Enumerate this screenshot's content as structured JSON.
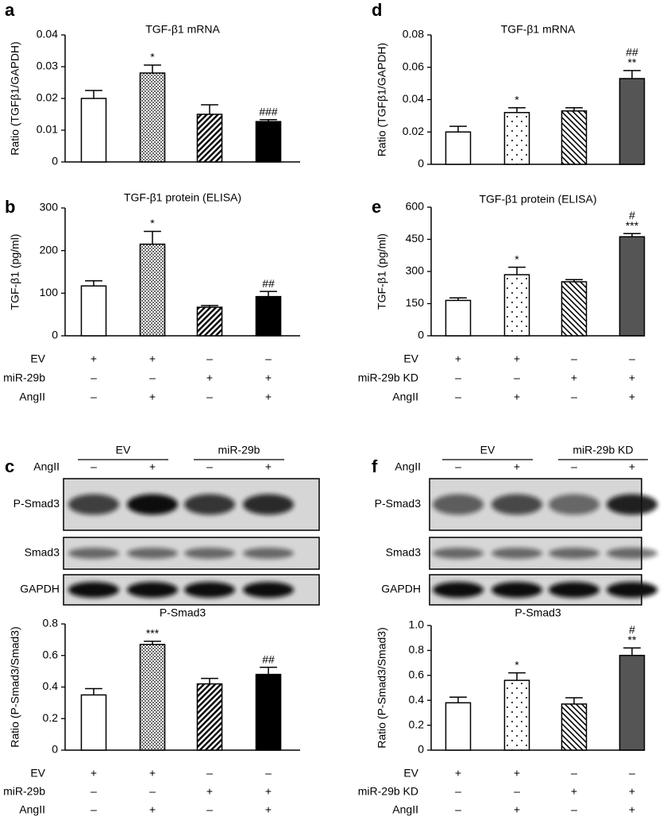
{
  "chart_data": [
    {
      "type": "bar",
      "panel": "a",
      "title": "TGF-β1 mRNA",
      "ylabel": "Ratio (TGFβ1/GAPDH)",
      "ylim": [
        0,
        0.04
      ],
      "yticks": [
        0,
        0.01,
        0.02,
        0.03,
        0.04
      ],
      "values": [
        0.02,
        0.028,
        0.015,
        0.0127
      ],
      "errors": [
        0.0025,
        0.0025,
        0.003,
        0.0006
      ],
      "annotations": [
        null,
        "*",
        null,
        "###"
      ],
      "fills": [
        "white",
        "fine-dots",
        "back-hatch",
        "black"
      ]
    },
    {
      "type": "bar",
      "panel": "b",
      "title": "TGF-β1 protein (ELISA)",
      "ylabel": "TGF-β1 (pg/ml)",
      "ylim": [
        0,
        300
      ],
      "yticks": [
        0,
        100,
        200,
        300
      ],
      "values": [
        117,
        215,
        67,
        92
      ],
      "errors": [
        12,
        30,
        4,
        12
      ],
      "annotations": [
        null,
        "*",
        null,
        "##"
      ],
      "fills": [
        "white",
        "fine-dots",
        "back-hatch",
        "black"
      ],
      "conditions": [
        {
          "label": "EV",
          "marks": [
            "+",
            "+",
            "–",
            "–"
          ]
        },
        {
          "label": "miR-29b",
          "marks": [
            "–",
            "–",
            "+",
            "+"
          ]
        },
        {
          "label": "AngII",
          "marks": [
            "–",
            "+",
            "–",
            "+"
          ]
        }
      ]
    },
    {
      "type": "bar",
      "panel": "c",
      "title": "P-Smad3",
      "ylabel": "Ratio (P-Smad3/Smad3)",
      "ylim": [
        0,
        0.8
      ],
      "yticks": [
        0,
        0.2,
        0.4,
        0.6,
        0.8
      ],
      "values": [
        0.35,
        0.67,
        0.42,
        0.48
      ],
      "errors": [
        0.04,
        0.02,
        0.035,
        0.045
      ],
      "annotations": [
        null,
        "***",
        null,
        "##"
      ],
      "fills": [
        "white",
        "fine-dots",
        "back-hatch",
        "black"
      ],
      "conditions": [
        {
          "label": "EV",
          "marks": [
            "+",
            "+",
            "–",
            "–"
          ]
        },
        {
          "label": "miR-29b",
          "marks": [
            "–",
            "–",
            "+",
            "+"
          ]
        },
        {
          "label": "AngII",
          "marks": [
            "–",
            "+",
            "–",
            "+"
          ]
        }
      ]
    },
    {
      "type": "bar",
      "panel": "d",
      "title": "TGF-β1 mRNA",
      "ylabel": "Ratio (TGFβ1/GAPDH)",
      "ylim": [
        0,
        0.08
      ],
      "yticks": [
        0,
        0.02,
        0.04,
        0.06,
        0.08
      ],
      "values": [
        0.02,
        0.032,
        0.033,
        0.053
      ],
      "errors": [
        0.0035,
        0.003,
        0.002,
        0.005
      ],
      "annotations": [
        null,
        "*",
        null,
        [
          "##",
          "**"
        ]
      ],
      "fills": [
        "white",
        "sparse-dots",
        "fwd-hatch",
        "dark"
      ]
    },
    {
      "type": "bar",
      "panel": "e",
      "title": "TGF-β1 protein (ELISA)",
      "ylabel": "TGF-β1 (pg/ml)",
      "ylim": [
        0,
        600
      ],
      "yticks": [
        0,
        150,
        300,
        450,
        600
      ],
      "values": [
        165,
        285,
        252,
        462
      ],
      "errors": [
        12,
        35,
        10,
        15
      ],
      "annotations": [
        null,
        "*",
        null,
        [
          "#",
          "***"
        ]
      ],
      "fills": [
        "white",
        "sparse-dots",
        "fwd-hatch",
        "dark"
      ],
      "conditions": [
        {
          "label": "EV",
          "marks": [
            "+",
            "+",
            "–",
            "–"
          ]
        },
        {
          "label": "miR-29b KD",
          "marks": [
            "–",
            "–",
            "+",
            "+"
          ]
        },
        {
          "label": "AngII",
          "marks": [
            "–",
            "+",
            "–",
            "+"
          ]
        }
      ]
    },
    {
      "type": "bar",
      "panel": "f",
      "title": "P-Smad3",
      "ylabel": "Ratio (P-Smad3/Smad3)",
      "ylim": [
        0,
        1
      ],
      "yticks": [
        0,
        0.2,
        0.4,
        0.6,
        0.8,
        {
          "value": 1,
          "label": "1.0"
        }
      ],
      "values": [
        0.38,
        0.56,
        0.37,
        0.76
      ],
      "errors": [
        0.045,
        0.06,
        0.05,
        0.06
      ],
      "annotations": [
        null,
        "*",
        null,
        [
          "#",
          "**"
        ]
      ],
      "fills": [
        "white",
        "sparse-dots",
        "fwd-hatch",
        "dark"
      ],
      "conditions": [
        {
          "label": "EV",
          "marks": [
            "+",
            "+",
            "–",
            "–"
          ]
        },
        {
          "label": "miR-29b KD",
          "marks": [
            "–",
            "–",
            "+",
            "+"
          ]
        },
        {
          "label": "AngII",
          "marks": [
            "–",
            "+",
            "–",
            "+"
          ]
        }
      ]
    }
  ],
  "blots": [
    {
      "groups": [
        "EV",
        "miR-29b"
      ],
      "treatment": "AngII",
      "marks": [
        "–",
        "+",
        "–",
        "+"
      ],
      "bands": [
        "P-Smad3",
        "Smad3",
        "GAPDH"
      ]
    },
    {
      "groups": [
        "EV",
        "miR-29b KD"
      ],
      "treatment": "AngII",
      "marks": [
        "–",
        "+",
        "–",
        "+"
      ],
      "bands": [
        "P-Smad3",
        "Smad3",
        "GAPDH"
      ]
    }
  ]
}
